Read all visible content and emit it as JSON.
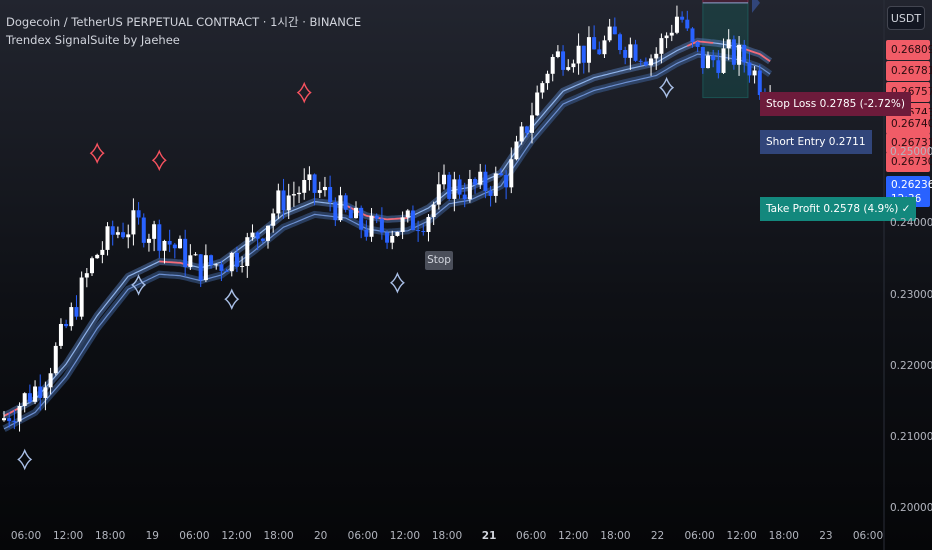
{
  "header": {
    "title": "Dogecoin / TetherUS PERPETUAL CONTRACT · 1시간 · BINANCE",
    "indicator": "Trendex SignalSuite by Jaehee"
  },
  "currency_button": "USDT",
  "price_tags": [
    "0.26809",
    "0.26781",
    "0.26757",
    "0.26743",
    "0.26740",
    "0.26731",
    "0.26730"
  ],
  "current_price": {
    "price": "0.26236",
    "countdown": "12:36"
  },
  "trade": {
    "stop_loss_label": "Stop Loss 0.2785 (-2.72%)",
    "short_entry_label": "Short Entry 0.2711",
    "take_profit_label": "Take Profit 0.2578 (4.9%) ✓",
    "stop_marker": "Stop"
  },
  "colors": {
    "up": "#ffffff",
    "down": "#2962ff",
    "ribbon": "#5b86c9",
    "sell_signal": "#f7525f",
    "buy_signal": "#a9bfe6",
    "stop_loss": "#6d1b3b",
    "take_profit": "#13887d",
    "entry": "#31457a"
  },
  "chart_data": {
    "type": "candlestick",
    "symbol": "DOGEUSDT.P",
    "interval": "1h",
    "y_ticks": [
      "0.25000",
      "0.24000",
      "0.23000",
      "0.22000",
      "0.21000",
      "0.20000"
    ],
    "ylim": [
      0.1985,
      0.2715
    ],
    "x_ticks": [
      "06:00",
      "12:00",
      "18:00",
      "19",
      "06:00",
      "12:00",
      "18:00",
      "20",
      "06:00",
      "12:00",
      "18:00",
      "21",
      "06:00",
      "12:00",
      "18:00",
      "22",
      "06:00",
      "12:00",
      "18:00",
      "23",
      "06:00"
    ],
    "x_tick_bold": [
      false,
      false,
      false,
      false,
      false,
      false,
      false,
      false,
      false,
      false,
      false,
      true,
      false,
      false,
      false,
      false,
      false,
      false,
      false,
      false,
      false
    ],
    "anchors": [
      [
        0,
        0.2125
      ],
      [
        8,
        0.218
      ],
      [
        14,
        0.228
      ],
      [
        18,
        0.2355
      ],
      [
        22,
        0.239
      ],
      [
        26,
        0.24
      ],
      [
        30,
        0.2388
      ],
      [
        34,
        0.2365
      ],
      [
        38,
        0.234
      ],
      [
        42,
        0.2345
      ],
      [
        46,
        0.236
      ],
      [
        50,
        0.239
      ],
      [
        54,
        0.2435
      ],
      [
        58,
        0.245
      ],
      [
        62,
        0.2445
      ],
      [
        66,
        0.2415
      ],
      [
        70,
        0.2395
      ],
      [
        74,
        0.2392
      ],
      [
        78,
        0.24
      ],
      [
        82,
        0.2412
      ],
      [
        86,
        0.2455
      ],
      [
        90,
        0.245
      ],
      [
        94,
        0.2455
      ],
      [
        98,
        0.247
      ],
      [
        102,
        0.255
      ],
      [
        106,
        0.263
      ],
      [
        110,
        0.2645
      ],
      [
        114,
        0.264
      ],
      [
        118,
        0.266
      ],
      [
        122,
        0.265
      ],
      [
        126,
        0.2635
      ],
      [
        128,
        0.266
      ],
      [
        131,
        0.27
      ],
      [
        133,
        0.265
      ],
      [
        136,
        0.2625
      ],
      [
        140,
        0.264
      ],
      [
        144,
        0.263
      ],
      [
        148,
        0.2582
      ]
    ],
    "ribbon_anchors": [
      [
        0,
        0.2122
      ],
      [
        6,
        0.2145
      ],
      [
        12,
        0.2195
      ],
      [
        18,
        0.2263
      ],
      [
        24,
        0.2318
      ],
      [
        30,
        0.2339
      ],
      [
        34,
        0.2337
      ],
      [
        38,
        0.233
      ],
      [
        42,
        0.2338
      ],
      [
        48,
        0.237
      ],
      [
        54,
        0.2405
      ],
      [
        60,
        0.2423
      ],
      [
        66,
        0.2418
      ],
      [
        70,
        0.2403
      ],
      [
        74,
        0.2398
      ],
      [
        78,
        0.24
      ],
      [
        82,
        0.2414
      ],
      [
        86,
        0.2438
      ],
      [
        90,
        0.2443
      ],
      [
        96,
        0.2463
      ],
      [
        102,
        0.2527
      ],
      [
        108,
        0.2578
      ],
      [
        114,
        0.2597
      ],
      [
        120,
        0.2608
      ],
      [
        126,
        0.2618
      ],
      [
        130,
        0.2635
      ],
      [
        134,
        0.2648
      ],
      [
        138,
        0.2645
      ],
      [
        142,
        0.264
      ],
      [
        146,
        0.263
      ],
      [
        148,
        0.262
      ]
    ],
    "sell_signals": [
      [
        18,
        0.25
      ],
      [
        30,
        0.249
      ],
      [
        58,
        0.2585
      ],
      [
        110,
        0.274
      ],
      [
        133,
        0.281
      ]
    ],
    "buy_signals": [
      [
        4,
        0.207
      ],
      [
        26,
        0.2315
      ],
      [
        44,
        0.2295
      ],
      [
        76,
        0.2318
      ],
      [
        128,
        0.2592
      ]
    ],
    "stop_loss": 0.2785,
    "entry": 0.2711,
    "take_profit": 0.2578,
    "entry_start_index": 135,
    "x_range": [
      0,
      170
    ]
  }
}
